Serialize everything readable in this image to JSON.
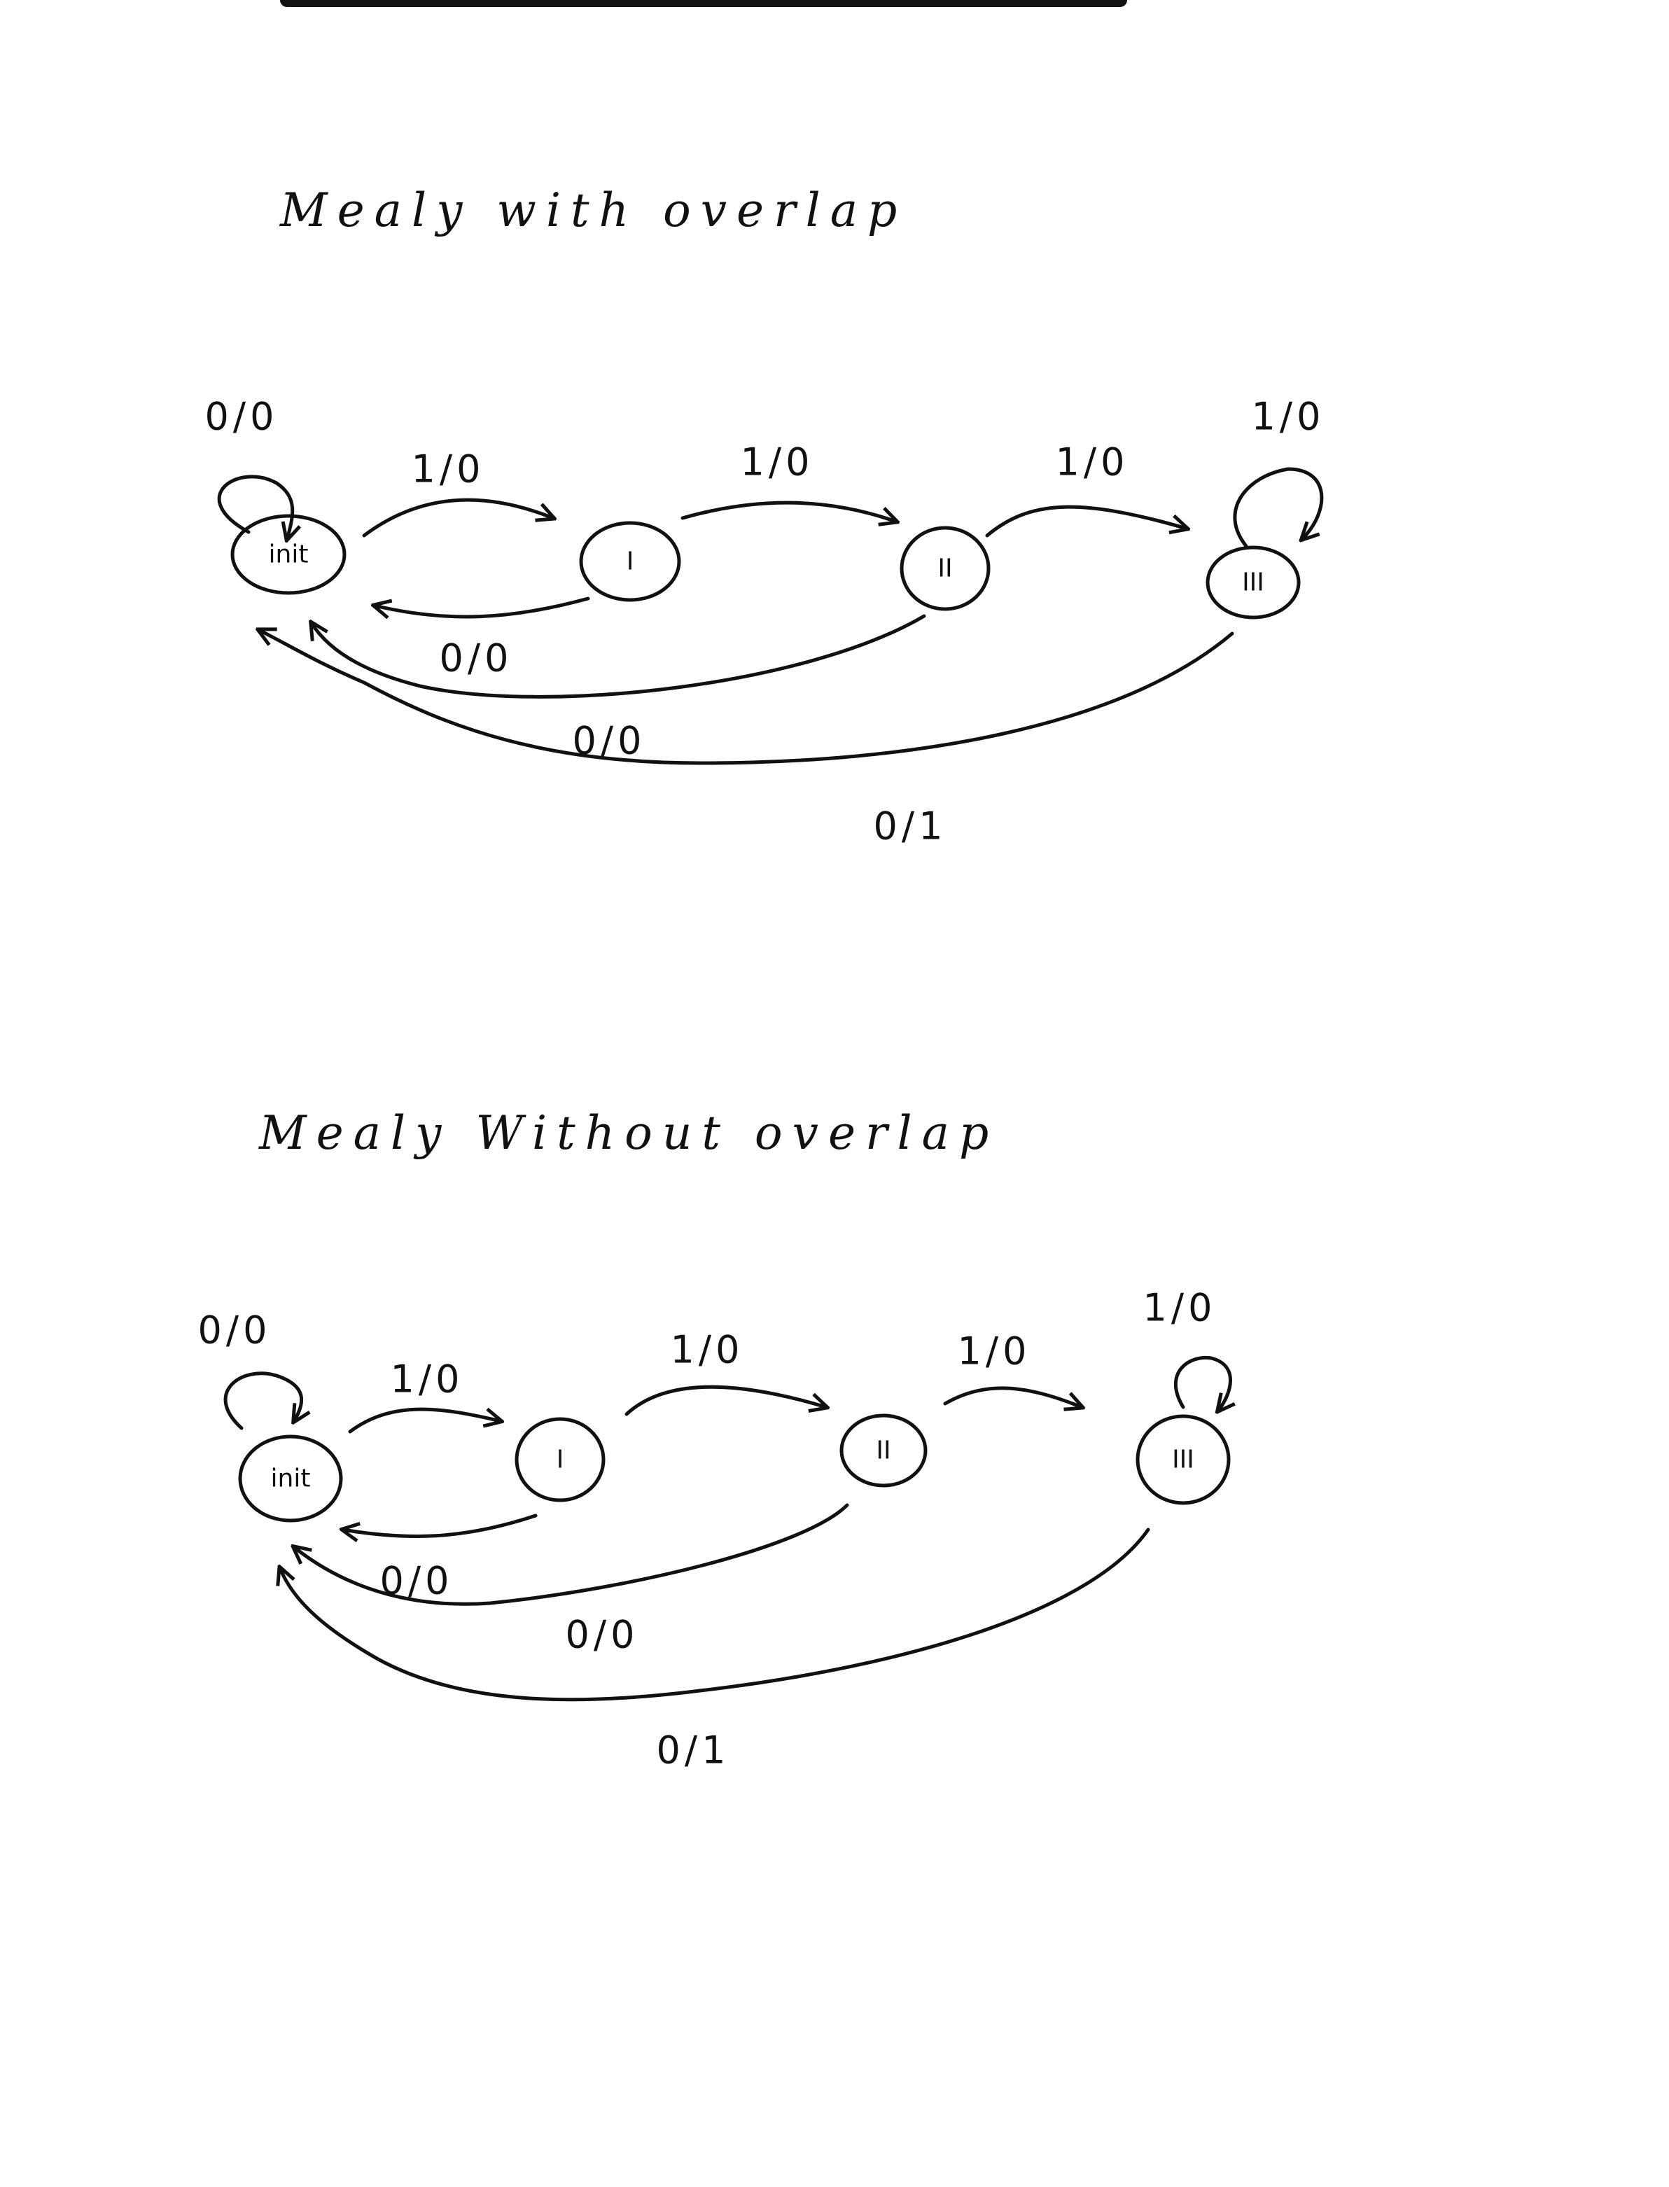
{
  "diagrams": [
    {
      "title": "Mealy with overlap",
      "states": {
        "init": "init",
        "s1": "I",
        "s2": "II",
        "s3": "III"
      },
      "edges": {
        "init_self": "0/0",
        "init_to_s1": "1/0",
        "s1_to_s2": "1/0",
        "s2_to_s3": "1/0",
        "s3_self": "1/0",
        "s1_to_init": "0/0",
        "s2_to_init": "0/0",
        "s3_to_init": "0/1"
      }
    },
    {
      "title": "Mealy Without overlap",
      "states": {
        "init": "init",
        "s1": "I",
        "s2": "II",
        "s3": "III"
      },
      "edges": {
        "init_self": "0/0",
        "init_to_s1": "1/0",
        "s1_to_s2": "1/0",
        "s2_to_s3": "1/0",
        "s3_self": "1/0",
        "s1_to_init": "0/0",
        "s2_to_init": "0/0",
        "s3_to_init": "0/1"
      }
    }
  ]
}
